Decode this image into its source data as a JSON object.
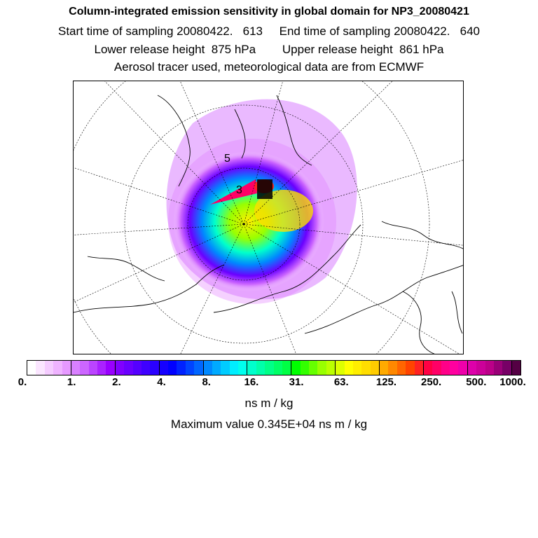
{
  "header": {
    "title": "Column-integrated emission sensitivity in global domain for NP3_20080421",
    "sampling": "Start time of sampling 20080422.   613     End time of sampling 20080422.   640",
    "release": "Lower release height  875 hPa        Upper release height  861 hPa",
    "tracer": "Aerosol tracer used, meteorological data are from ECMWF"
  },
  "colorbar": {
    "tick_labels": [
      "0.",
      "1.",
      "2.",
      "4.",
      "8.",
      "16.",
      "31.",
      "63.",
      "125.",
      "250.",
      "500.",
      "1000."
    ],
    "colors": [
      "#ffffff",
      "#fbe6ff",
      "#f5ccff",
      "#efb3ff",
      "#e699ff",
      "#d980ff",
      "#cc66ff",
      "#bb44ff",
      "#aa22ff",
      "#9900ff",
      "#8000ff",
      "#6a00ff",
      "#5500ff",
      "#3f00ff",
      "#2a00ff",
      "#1500ff",
      "#0000ff",
      "#0022ff",
      "#0044ff",
      "#0066ff",
      "#0088ff",
      "#00aaff",
      "#00ccff",
      "#00eeff",
      "#00ffee",
      "#00ffcc",
      "#00ffaa",
      "#00ff88",
      "#00ff66",
      "#00ff44",
      "#00ff00",
      "#33ff00",
      "#66ff00",
      "#99ff00",
      "#bbff00",
      "#ddff00",
      "#ffff00",
      "#ffee00",
      "#ffdd00",
      "#ffcc00",
      "#ffaa00",
      "#ff8800",
      "#ff6600",
      "#ff4400",
      "#ff2222",
      "#ff0044",
      "#ff0066",
      "#ff0088",
      "#ff00a0",
      "#ee00aa",
      "#dd00aa",
      "#cc0099",
      "#bb0088",
      "#990077",
      "#770066",
      "#550044"
    ]
  },
  "units": "ns m / kg",
  "maximum": "Maximum value  0.345E+04 ns m / kg"
}
